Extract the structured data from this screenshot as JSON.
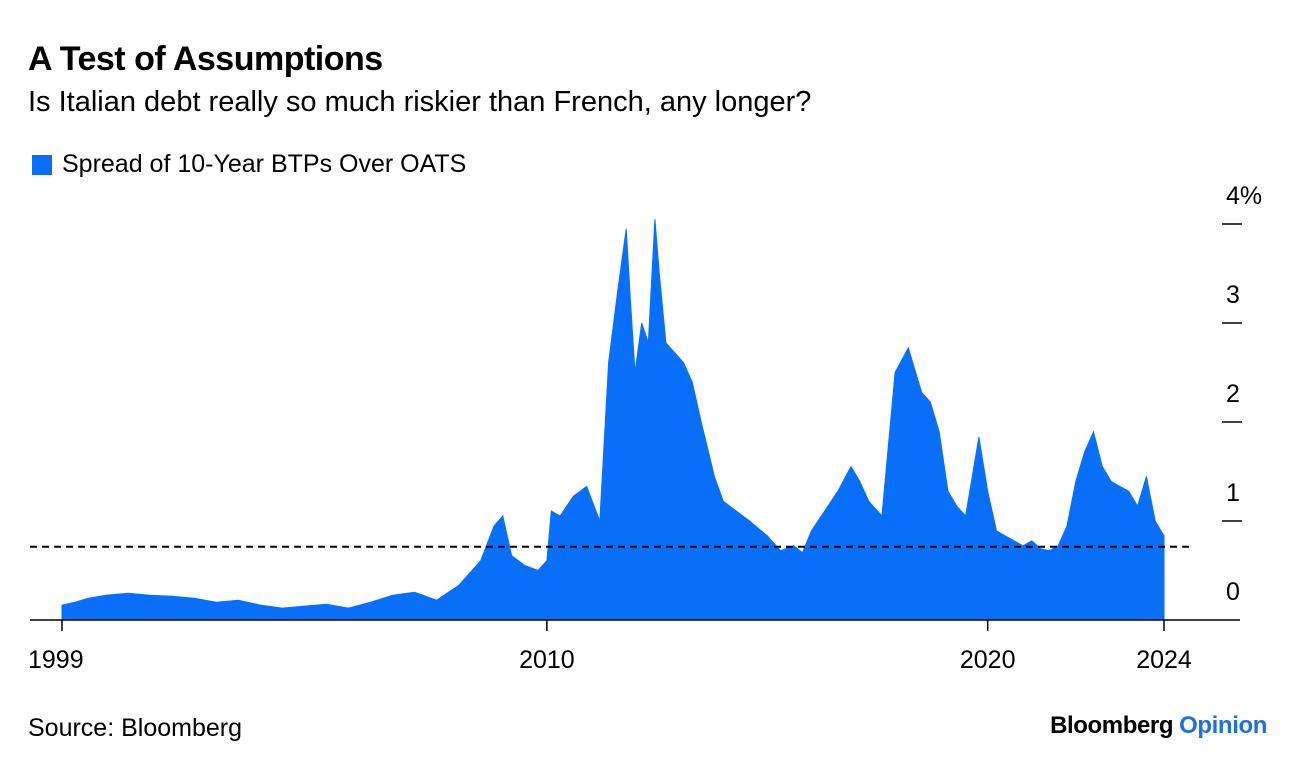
{
  "header": {
    "title": "A Test of Assumptions",
    "subtitle": "Is Italian debt really so much riskier than French, any longer?"
  },
  "footer": {
    "source": "Source: Bloomberg",
    "brand": "Bloomberg",
    "brand_suffix": "Opinion"
  },
  "colors": {
    "series": "#0a6ff8",
    "brand_suffix": "#1f6fe0",
    "reference_line": "#000000"
  },
  "chart_data": {
    "type": "area",
    "title": "A Test of Assumptions",
    "subtitle": "Is Italian debt really so much riskier than French, any longer?",
    "legend": [
      "Spread of 10-Year BTPs Over OATS"
    ],
    "legend_position": "top-left",
    "xlabel": "",
    "ylabel": "",
    "x_ticks": [
      1999,
      2010,
      2020,
      2024
    ],
    "x_tick_labels": [
      "1999",
      "2010",
      "2020",
      "2024"
    ],
    "xlim": [
      1998.4,
      2025.8
    ],
    "y_ticks": [
      0,
      1,
      2,
      3,
      4
    ],
    "y_tick_labels": [
      "0",
      "1",
      "2",
      "3",
      "4%"
    ],
    "ylim": [
      0,
      4.2
    ],
    "grid": false,
    "reference_line": {
      "y": 0.74,
      "style": "dashed"
    },
    "series": [
      {
        "name": "Spread of 10-Year BTPs Over OATS",
        "x": [
          1999.0,
          1999.3,
          1999.6,
          2000.0,
          2000.5,
          2001.0,
          2001.5,
          2002.0,
          2002.5,
          2003.0,
          2003.5,
          2004.0,
          2004.5,
          2005.0,
          2005.5,
          2006.0,
          2006.5,
          2007.0,
          2007.5,
          2008.0,
          2008.5,
          2008.8,
          2009.0,
          2009.2,
          2009.5,
          2009.8,
          2010.0,
          2010.1,
          2010.3,
          2010.6,
          2010.9,
          2011.2,
          2011.4,
          2011.6,
          2011.8,
          2011.9,
          2012.0,
          2012.15,
          2012.3,
          2012.45,
          2012.55,
          2012.7,
          2012.9,
          2013.1,
          2013.3,
          2013.5,
          2013.8,
          2014.0,
          2014.3,
          2014.6,
          2015.0,
          2015.3,
          2015.6,
          2015.8,
          2016.0,
          2016.3,
          2016.6,
          2016.9,
          2017.1,
          2017.3,
          2017.6,
          2017.9,
          2018.2,
          2018.5,
          2018.7,
          2018.9,
          2019.1,
          2019.3,
          2019.5,
          2019.8,
          2020.0,
          2020.2,
          2020.4,
          2020.6,
          2020.8,
          2021.0,
          2021.2,
          2021.4,
          2021.6,
          2021.8,
          2022.0,
          2022.2,
          2022.4,
          2022.6,
          2022.8,
          2023.0,
          2023.2,
          2023.4,
          2023.6,
          2023.8,
          2024.0
        ],
        "values": [
          0.15,
          0.18,
          0.22,
          0.25,
          0.27,
          0.25,
          0.24,
          0.22,
          0.18,
          0.2,
          0.15,
          0.12,
          0.14,
          0.16,
          0.12,
          0.18,
          0.25,
          0.28,
          0.2,
          0.35,
          0.6,
          0.95,
          1.05,
          0.65,
          0.55,
          0.5,
          0.6,
          1.1,
          1.05,
          1.25,
          1.35,
          1.0,
          2.6,
          3.3,
          3.95,
          3.2,
          2.5,
          3.0,
          2.8,
          4.05,
          3.5,
          2.8,
          2.7,
          2.6,
          2.4,
          2.0,
          1.45,
          1.2,
          1.1,
          1.0,
          0.85,
          0.7,
          0.75,
          0.68,
          0.9,
          1.1,
          1.3,
          1.55,
          1.4,
          1.2,
          1.05,
          2.5,
          2.75,
          2.3,
          2.2,
          1.9,
          1.3,
          1.15,
          1.05,
          1.85,
          1.3,
          0.9,
          0.85,
          0.8,
          0.75,
          0.8,
          0.72,
          0.7,
          0.75,
          0.95,
          1.4,
          1.7,
          1.9,
          1.55,
          1.4,
          1.35,
          1.3,
          1.15,
          1.45,
          1.0,
          0.85
        ]
      }
    ]
  }
}
